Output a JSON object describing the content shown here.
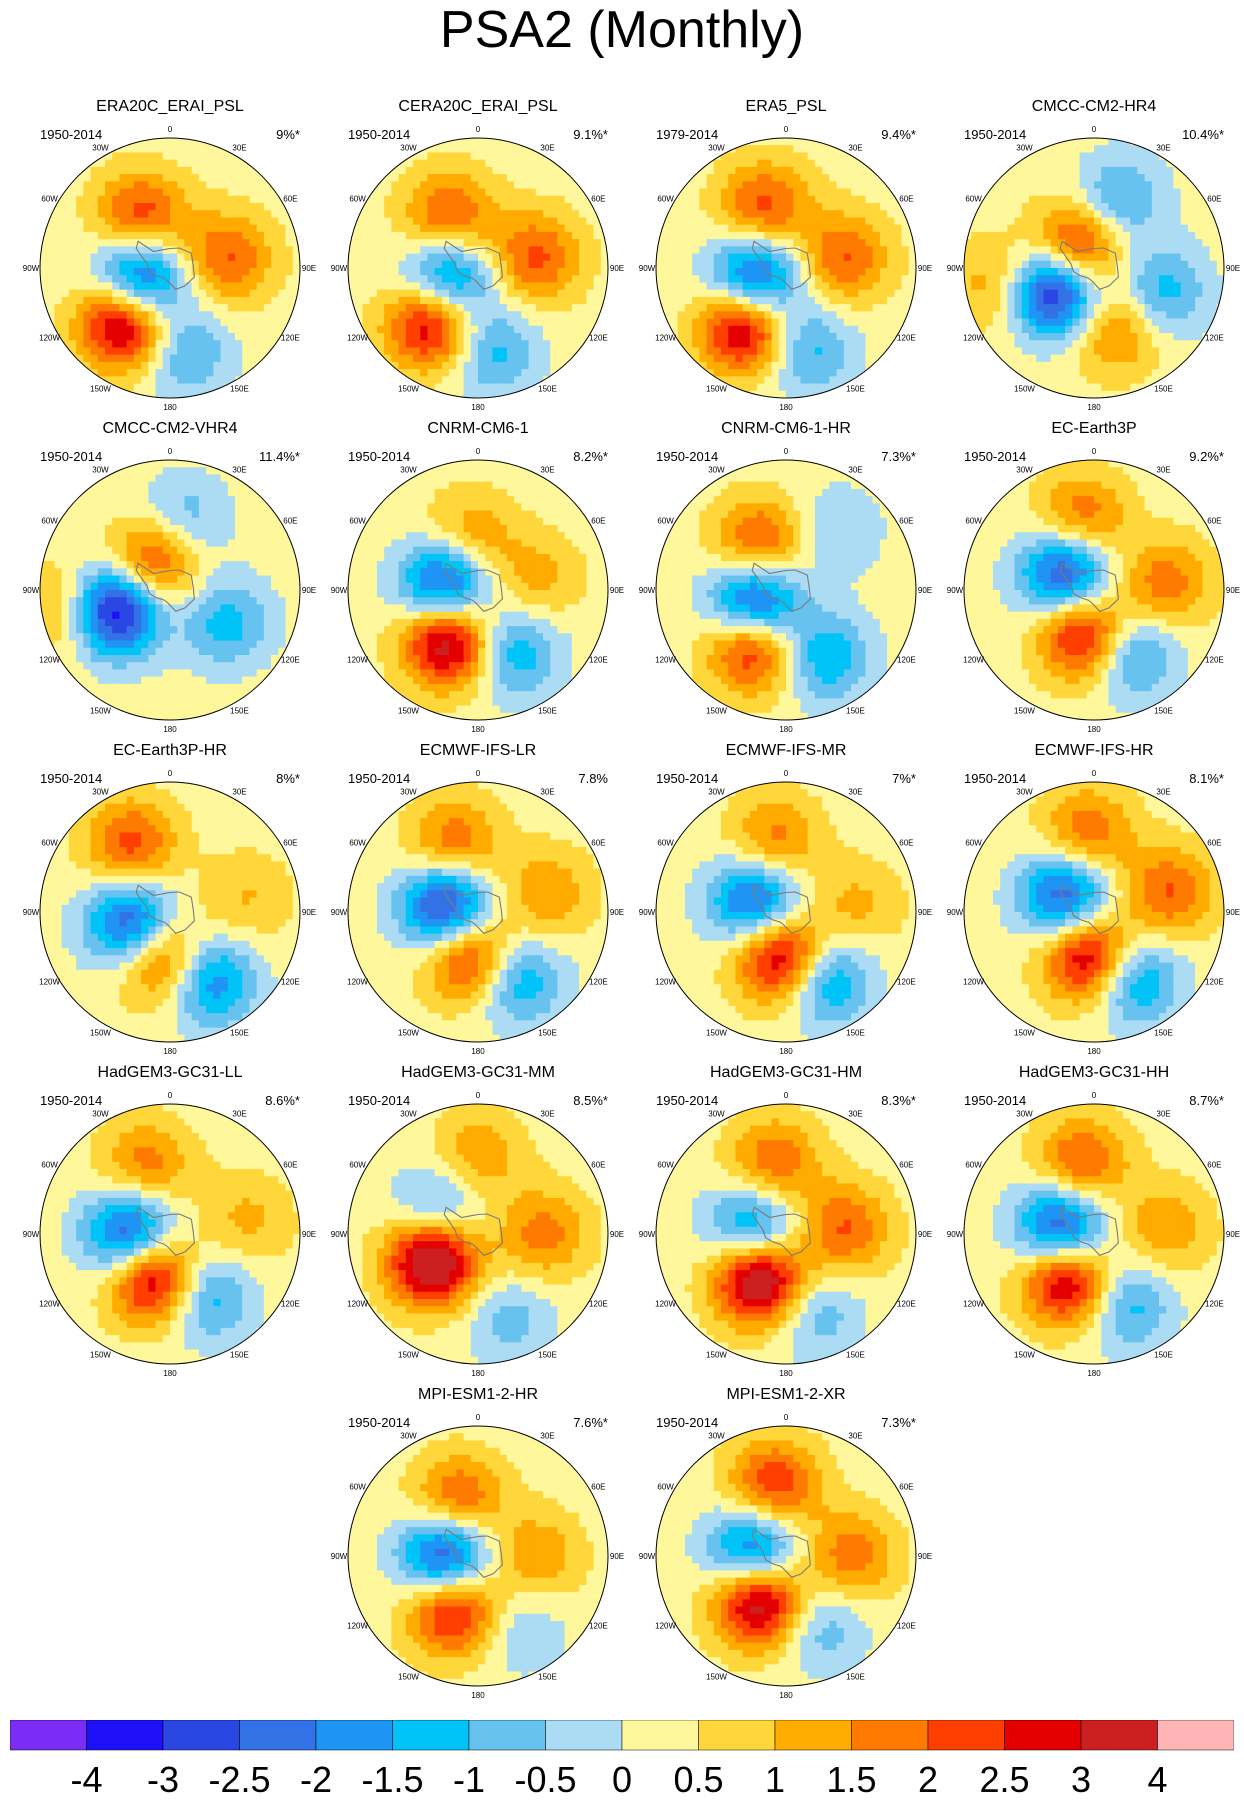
{
  "title": "PSA2 (Monthly)",
  "chart_data": {
    "type": "heatmap",
    "title": "PSA2 (Monthly)",
    "projection": "south polar stereographic",
    "longitude_labels": [
      "0",
      "30E",
      "60E",
      "90E",
      "120E",
      "150E",
      "180",
      "150W",
      "120W",
      "90W",
      "60W",
      "30W"
    ],
    "colorbar": {
      "colors": [
        "#7b2cf5",
        "#1f10fa",
        "#2a47e3",
        "#3372e6",
        "#1e95f5",
        "#00c3f7",
        "#68c2ef",
        "#acdcf3",
        "#fff79b",
        "#ffd73a",
        "#ffab00",
        "#ff7a00",
        "#ff3f00",
        "#e50000",
        "#cc1f1f",
        "#ffb5b5"
      ],
      "labels": [
        "-4",
        "-3",
        "-2.5",
        "-2",
        "-1.5",
        "-1",
        "-0.5",
        "0",
        "0.5",
        "1",
        "1.5",
        "2",
        "2.5",
        "3",
        "4"
      ]
    },
    "panels": [
      {
        "name": "ERA20C_ERAI_PSL",
        "period": "1950-2014",
        "variance": "9%*",
        "blobs": [
          {
            "lon": -30,
            "r": 0.45,
            "v": 2.2
          },
          {
            "lon": 80,
            "r": 0.45,
            "v": 1.8
          },
          {
            "lon": -110,
            "r": 0.25,
            "v": -3.3
          },
          {
            "lon": -140,
            "r": 0.55,
            "v": 3.6
          },
          {
            "lon": 170,
            "r": 0.65,
            "v": -1.4
          }
        ]
      },
      {
        "name": "CERA20C_ERAI_PSL",
        "period": "1950-2014",
        "variance": "9.1%*",
        "blobs": [
          {
            "lon": -30,
            "r": 0.45,
            "v": 2.0
          },
          {
            "lon": 80,
            "r": 0.45,
            "v": 1.9
          },
          {
            "lon": -110,
            "r": 0.25,
            "v": -2.8
          },
          {
            "lon": -140,
            "r": 0.55,
            "v": 3.2
          },
          {
            "lon": 170,
            "r": 0.65,
            "v": -1.5
          }
        ]
      },
      {
        "name": "ERA5_PSL",
        "period": "1979-2014",
        "variance": "9.4%*",
        "blobs": [
          {
            "lon": -20,
            "r": 0.5,
            "v": 2.0
          },
          {
            "lon": 80,
            "r": 0.45,
            "v": 1.8
          },
          {
            "lon": -110,
            "r": 0.25,
            "v": -3.2
          },
          {
            "lon": -145,
            "r": 0.55,
            "v": 3.4
          },
          {
            "lon": 165,
            "r": 0.65,
            "v": -1.5
          }
        ]
      },
      {
        "name": "CMCC-CM2-HR4",
        "period": "1950-2014",
        "variance": "10.4%*",
        "blobs": [
          {
            "lon": -40,
            "r": 0.2,
            "v": 2.8
          },
          {
            "lon": 20,
            "r": 0.55,
            "v": -1.5
          },
          {
            "lon": 110,
            "r": 0.55,
            "v": -1.6
          },
          {
            "lon": -120,
            "r": 0.35,
            "v": -4.0
          },
          {
            "lon": -100,
            "r": 0.75,
            "v": 1.2
          },
          {
            "lon": 160,
            "r": 0.5,
            "v": 1.6
          }
        ]
      },
      {
        "name": "CMCC-CM2-VHR4",
        "period": "1950-2014",
        "variance": "11.4%*",
        "blobs": [
          {
            "lon": -30,
            "r": 0.25,
            "v": 2.4
          },
          {
            "lon": 10,
            "r": 0.55,
            "v": -1.2
          },
          {
            "lon": 120,
            "r": 0.5,
            "v": -1.5
          },
          {
            "lon": -110,
            "r": 0.45,
            "v": -4.0
          },
          {
            "lon": -100,
            "r": 0.82,
            "v": 1.3
          }
        ]
      },
      {
        "name": "CNRM-CM6-1",
        "period": "1950-2014",
        "variance": "8.2%*",
        "blobs": [
          {
            "lon": -10,
            "r": 0.4,
            "v": 1.4
          },
          {
            "lon": 80,
            "r": 0.45,
            "v": 1.0
          },
          {
            "lon": -80,
            "r": 0.25,
            "v": -3.3
          },
          {
            "lon": -150,
            "r": 0.45,
            "v": 3.6
          },
          {
            "lon": 150,
            "r": 0.55,
            "v": -1.8
          }
        ]
      },
      {
        "name": "CNRM-CM6-1-HR",
        "period": "1950-2014",
        "variance": "7.3%*",
        "blobs": [
          {
            "lon": -30,
            "r": 0.4,
            "v": 2.2
          },
          {
            "lon": 40,
            "r": 0.6,
            "v": -0.8
          },
          {
            "lon": -110,
            "r": 0.25,
            "v": -3.5
          },
          {
            "lon": -150,
            "r": 0.5,
            "v": 2.8
          },
          {
            "lon": 150,
            "r": 0.6,
            "v": -1.8
          }
        ]
      },
      {
        "name": "EC-Earth3P",
        "period": "1950-2014",
        "variance": "9.2%*",
        "blobs": [
          {
            "lon": -10,
            "r": 0.55,
            "v": 1.8
          },
          {
            "lon": 85,
            "r": 0.55,
            "v": 1.6
          },
          {
            "lon": -60,
            "r": 0.25,
            "v": -3.2
          },
          {
            "lon": -170,
            "r": 0.35,
            "v": 3.2
          },
          {
            "lon": 150,
            "r": 0.55,
            "v": -2.0
          }
        ]
      },
      {
        "name": "EC-Earth3P-HR",
        "period": "1950-2014",
        "variance": "8%*",
        "blobs": [
          {
            "lon": -30,
            "r": 0.6,
            "v": 2.0
          },
          {
            "lon": 80,
            "r": 0.6,
            "v": 0.8
          },
          {
            "lon": -110,
            "r": 0.3,
            "v": -3.3
          },
          {
            "lon": -170,
            "r": 0.35,
            "v": 2.8
          },
          {
            "lon": 150,
            "r": 0.6,
            "v": -2.4
          }
        ]
      },
      {
        "name": "ECMWF-IFS-LR",
        "period": "1950-2014",
        "variance": "7.8%",
        "blobs": [
          {
            "lon": -20,
            "r": 0.55,
            "v": 1.8
          },
          {
            "lon": 75,
            "r": 0.55,
            "v": 1.2
          },
          {
            "lon": -80,
            "r": 0.25,
            "v": -3.5
          },
          {
            "lon": -170,
            "r": 0.35,
            "v": 2.7
          },
          {
            "lon": 150,
            "r": 0.6,
            "v": -1.9
          }
        ]
      },
      {
        "name": "ECMWF-IFS-MR",
        "period": "1950-2014",
        "variance": "7%*",
        "blobs": [
          {
            "lon": -10,
            "r": 0.55,
            "v": 1.6
          },
          {
            "lon": 85,
            "r": 0.55,
            "v": 0.9
          },
          {
            "lon": -70,
            "r": 0.25,
            "v": -2.9
          },
          {
            "lon": -175,
            "r": 0.35,
            "v": 3.4
          },
          {
            "lon": 150,
            "r": 0.6,
            "v": -2.2
          }
        ]
      },
      {
        "name": "ECMWF-IFS-HR",
        "period": "1950-2014",
        "variance": "8.1%*",
        "blobs": [
          {
            "lon": -5,
            "r": 0.6,
            "v": 1.8
          },
          {
            "lon": 75,
            "r": 0.6,
            "v": 1.8
          },
          {
            "lon": -60,
            "r": 0.25,
            "v": -2.9
          },
          {
            "lon": -175,
            "r": 0.35,
            "v": 3.3
          },
          {
            "lon": 150,
            "r": 0.6,
            "v": -2.2
          }
        ]
      },
      {
        "name": "HadGEM3-GC31-LL",
        "period": "1950-2014",
        "variance": "8.6%*",
        "blobs": [
          {
            "lon": -20,
            "r": 0.55,
            "v": 1.6
          },
          {
            "lon": 80,
            "r": 0.6,
            "v": 0.9
          },
          {
            "lon": -90,
            "r": 0.3,
            "v": -3.3
          },
          {
            "lon": -160,
            "r": 0.35,
            "v": 3.6
          },
          {
            "lon": 150,
            "r": 0.55,
            "v": -1.8
          }
        ]
      },
      {
        "name": "HadGEM3-GC31-MM",
        "period": "1950-2014",
        "variance": "8.5%*",
        "blobs": [
          {
            "lon": 0,
            "r": 0.6,
            "v": 1.2
          },
          {
            "lon": 90,
            "r": 0.5,
            "v": 1.5
          },
          {
            "lon": -60,
            "r": 0.35,
            "v": -1.6
          },
          {
            "lon": -120,
            "r": 0.4,
            "v": 4.0
          },
          {
            "lon": 160,
            "r": 0.7,
            "v": -1.0
          }
        ]
      },
      {
        "name": "HadGEM3-GC31-HM",
        "period": "1950-2014",
        "variance": "8.3%*",
        "blobs": [
          {
            "lon": -10,
            "r": 0.55,
            "v": 1.8
          },
          {
            "lon": 85,
            "r": 0.45,
            "v": 1.8
          },
          {
            "lon": -80,
            "r": 0.25,
            "v": -2.5
          },
          {
            "lon": -150,
            "r": 0.4,
            "v": 4.0
          },
          {
            "lon": 160,
            "r": 0.65,
            "v": -1.2
          }
        ]
      },
      {
        "name": "HadGEM3-GC31-HH",
        "period": "1950-2014",
        "variance": "8.7%*",
        "blobs": [
          {
            "lon": -10,
            "r": 0.55,
            "v": 2.0
          },
          {
            "lon": 85,
            "r": 0.55,
            "v": 1.2
          },
          {
            "lon": -80,
            "r": 0.25,
            "v": -3.3
          },
          {
            "lon": -150,
            "r": 0.4,
            "v": 3.4
          },
          {
            "lon": 155,
            "r": 0.6,
            "v": -1.6
          }
        ]
      },
      {
        "name": "MPI-ESM1-2-HR",
        "period": "1950-2014",
        "variance": "7.6%*",
        "blobs": [
          {
            "lon": -20,
            "r": 0.45,
            "v": 2.0
          },
          {
            "lon": 90,
            "r": 0.45,
            "v": 1.2
          },
          {
            "lon": -90,
            "r": 0.25,
            "v": -3.4
          },
          {
            "lon": -155,
            "r": 0.45,
            "v": 2.9
          },
          {
            "lon": 150,
            "r": 0.65,
            "v": -0.8
          }
        ]
      },
      {
        "name": "MPI-ESM1-2-XR",
        "period": "1950-2014",
        "variance": "7.3%*",
        "blobs": [
          {
            "lon": -10,
            "r": 0.55,
            "v": 2.3
          },
          {
            "lon": 90,
            "r": 0.5,
            "v": 1.6
          },
          {
            "lon": -80,
            "r": 0.25,
            "v": -2.9
          },
          {
            "lon": -150,
            "r": 0.4,
            "v": 3.6
          },
          {
            "lon": 155,
            "r": 0.6,
            "v": -1.2
          }
        ]
      }
    ]
  }
}
